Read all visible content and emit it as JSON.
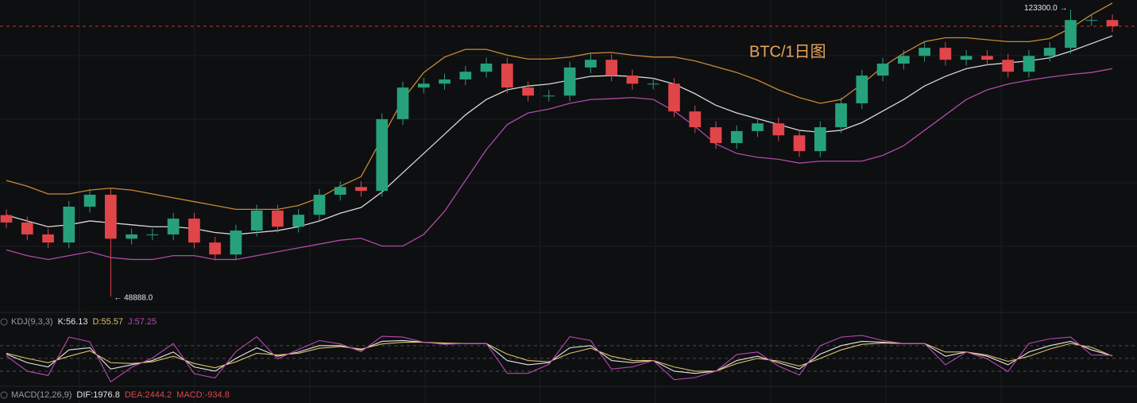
{
  "chart_data": {
    "type": "candlestick",
    "title": "BTC/1日图",
    "ylim": [
      45400,
      125800
    ],
    "up_color": "#26a17b",
    "down_color": "#e0454a",
    "open": [
      70000,
      68100,
      65000,
      62900,
      72200,
      75300,
      63900,
      65000,
      65000,
      69100,
      62900,
      59800,
      66000,
      71200,
      67000,
      70100,
      75300,
      77300,
      76300,
      94900,
      103100,
      104100,
      105200,
      107200,
      109300,
      103100,
      101000,
      101000,
      108300,
      110300,
      106200,
      104100,
      104100,
      96900,
      92800,
      88700,
      91800,
      93800,
      90700,
      86600,
      92800,
      99000,
      106200,
      109300,
      111300,
      113400,
      110300,
      111300,
      110300,
      107200,
      111300,
      113400,
      120600,
      120600
    ],
    "high": [
      71500,
      69600,
      66500,
      73700,
      76800,
      76800,
      66500,
      66500,
      70600,
      70600,
      64400,
      67500,
      72700,
      72700,
      71600,
      76800,
      78800,
      78800,
      96400,
      104600,
      105600,
      106700,
      108700,
      110800,
      110800,
      104600,
      102500,
      109800,
      111800,
      111800,
      107700,
      105600,
      105600,
      98400,
      94300,
      93300,
      95300,
      95300,
      92200,
      94300,
      100500,
      107700,
      110800,
      112800,
      114900,
      114900,
      112800,
      112800,
      111800,
      112800,
      114900,
      123300,
      122100,
      122100
    ],
    "low": [
      66600,
      63500,
      61400,
      61400,
      70700,
      48888,
      62400,
      63500,
      63500,
      61400,
      58300,
      58300,
      64500,
      65500,
      65500,
      68600,
      73800,
      74800,
      74800,
      93400,
      101600,
      102600,
      103700,
      105700,
      101600,
      99500,
      99500,
      99500,
      106800,
      104700,
      102600,
      102600,
      95400,
      91300,
      87200,
      87200,
      90300,
      89200,
      85100,
      85100,
      91300,
      97500,
      104700,
      107800,
      109800,
      108800,
      108800,
      108800,
      105700,
      105700,
      109800,
      111900,
      119100,
      117500
    ],
    "close": [
      68100,
      65000,
      62900,
      72200,
      75300,
      63900,
      65000,
      65000,
      69100,
      62900,
      59800,
      66000,
      71200,
      67000,
      70100,
      75300,
      77300,
      76300,
      94900,
      103100,
      104100,
      105200,
      107200,
      109300,
      103100,
      101000,
      101000,
      108300,
      110300,
      106200,
      104100,
      104100,
      96900,
      92800,
      88700,
      91800,
      93800,
      90700,
      86600,
      92800,
      99000,
      106200,
      109300,
      111300,
      113400,
      110300,
      111300,
      110300,
      107200,
      111300,
      113400,
      120600,
      120600,
      119000
    ],
    "bands": {
      "upper": {
        "color": "#c8893a",
        "values": [
          79000,
          77500,
          75500,
          75500,
          76500,
          77000,
          76500,
          75500,
          74500,
          73500,
          72500,
          71500,
          71500,
          71500,
          72500,
          74500,
          77500,
          80000,
          90000,
          100000,
          107000,
          111000,
          113000,
          113000,
          111500,
          110500,
          110500,
          111000,
          112000,
          112200,
          111500,
          111000,
          111000,
          110000,
          108500,
          107000,
          105000,
          102500,
          100500,
          99000,
          100000,
          104000,
          108500,
          112000,
          115000,
          116000,
          116000,
          115500,
          115000,
          115000,
          115800,
          118500,
          122000,
          125000
        ]
      },
      "middle": {
        "color": "#d8d8d8",
        "values": [
          70000,
          68500,
          67000,
          67500,
          68500,
          68000,
          67500,
          67000,
          67000,
          66500,
          65500,
          65000,
          65500,
          66000,
          67000,
          68500,
          70500,
          72000,
          76000,
          81000,
          86000,
          91000,
          96000,
          100000,
          102500,
          103500,
          104000,
          105000,
          106000,
          106200,
          106000,
          105500,
          104000,
          101500,
          98500,
          96500,
          95000,
          93500,
          92000,
          91500,
          92000,
          94000,
          97000,
          100000,
          103500,
          106000,
          108000,
          109000,
          109500,
          110000,
          110800,
          112500,
          114500,
          116500
        ]
      },
      "lower": {
        "color": "#b04aa8",
        "values": [
          61000,
          59500,
          58500,
          59500,
          60500,
          59000,
          58500,
          58500,
          59500,
          59500,
          58500,
          58500,
          59500,
          60500,
          61500,
          62500,
          63500,
          64000,
          62000,
          62000,
          65000,
          71000,
          79000,
          87000,
          93500,
          96500,
          97500,
          99000,
          100000,
          100200,
          100500,
          100000,
          97000,
          93000,
          88500,
          86000,
          85000,
          84500,
          83500,
          84000,
          84000,
          84000,
          85500,
          88000,
          92000,
          96000,
          100000,
          102500,
          104000,
          105000,
          105800,
          106500,
          107000,
          108000
        ]
      }
    },
    "last_price": {
      "value": 119000,
      "color": "#c0392b"
    },
    "annotations": [
      {
        "value": 123300,
        "label": "123300.0 →"
      },
      {
        "value": 48888,
        "label": "← 48888.0"
      }
    ],
    "kdj": {
      "label": "KDJ(9,3,3)",
      "ylim": [
        -23,
        117
      ],
      "levels": [
        20,
        50,
        80
      ],
      "series": [
        {
          "name": "K:56.13",
          "color": "#e6e6e6",
          "values": [
            60,
            40,
            30,
            70,
            75,
            25,
            35,
            45,
            65,
            30,
            20,
            50,
            75,
            55,
            65,
            80,
            80,
            70,
            90,
            92,
            88,
            85,
            85,
            85,
            45,
            35,
            40,
            75,
            80,
            45,
            40,
            45,
            20,
            15,
            20,
            45,
            55,
            40,
            25,
            60,
            80,
            90,
            88,
            85,
            85,
            55,
            65,
            55,
            35,
            65,
            80,
            90,
            70,
            56.13
          ]
        },
        {
          "name": "D:55.57",
          "color": "#dcc067",
          "values": [
            62,
            50,
            40,
            55,
            68,
            40,
            38,
            42,
            55,
            38,
            28,
            42,
            62,
            58,
            62,
            74,
            78,
            72,
            84,
            88,
            88,
            86,
            85,
            85,
            60,
            45,
            42,
            62,
            74,
            55,
            45,
            45,
            30,
            20,
            20,
            38,
            50,
            44,
            32,
            50,
            70,
            83,
            86,
            85,
            85,
            65,
            65,
            58,
            43,
            55,
            72,
            85,
            76,
            55.57
          ]
        },
        {
          "name": "J:57.25",
          "color": "#b948b5",
          "values": [
            56,
            20,
            10,
            100,
            89,
            -5,
            29,
            51,
            85,
            14,
            4,
            66,
            101,
            49,
            71,
            92,
            84,
            66,
            102,
            100,
            88,
            83,
            85,
            85,
            15,
            15,
            36,
            101,
            92,
            25,
            30,
            45,
            0,
            5,
            20,
            59,
            65,
            32,
            11,
            80,
            100,
            104,
            92,
            85,
            85,
            35,
            65,
            49,
            19,
            85,
            96,
            100,
            58,
            57.25
          ]
        }
      ]
    },
    "macd": {
      "label": "MACD(12,26,9)",
      "readouts": [
        {
          "text": "DIF:1976.8",
          "color": "#e6e6e6"
        },
        {
          "text": "DEA:2444.2",
          "color": "#e0454a"
        },
        {
          "text": "MACD:-934.8",
          "color": "#e0454a"
        }
      ]
    }
  }
}
